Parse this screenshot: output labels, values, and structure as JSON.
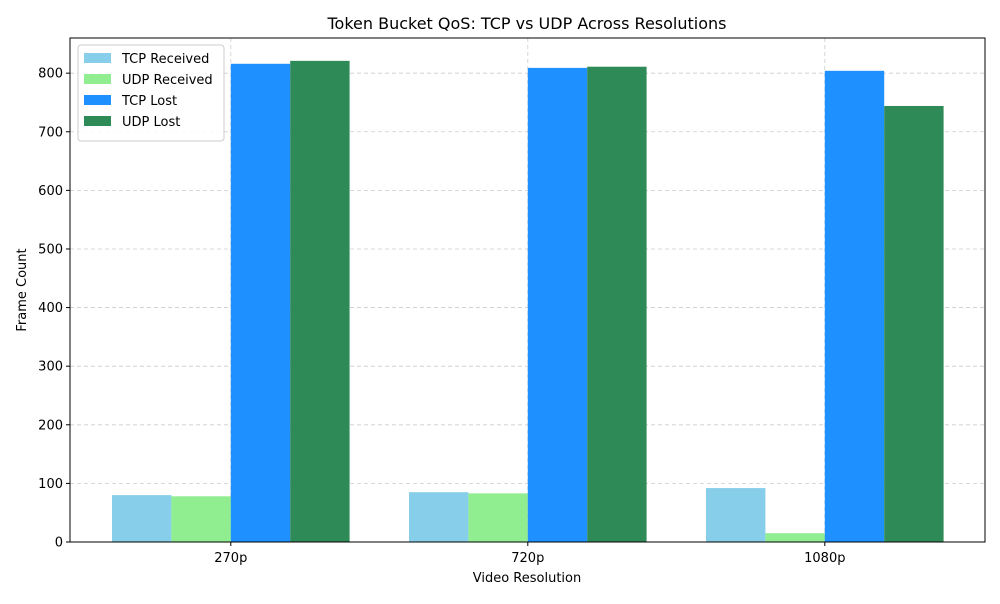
{
  "chart_data": {
    "type": "bar",
    "title": "Token Bucket QoS: TCP vs UDP Across Resolutions",
    "xlabel": "Video Resolution",
    "ylabel": "Frame Count",
    "categories": [
      "270p",
      "720p",
      "1080p"
    ],
    "ylim": [
      0,
      860
    ],
    "yticks": [
      0,
      100,
      200,
      300,
      400,
      500,
      600,
      700,
      800
    ],
    "grid": true,
    "legend_position": "top-left",
    "series": [
      {
        "name": "TCP Received",
        "color": "#87CEEB",
        "values": [
          80,
          85,
          92
        ]
      },
      {
        "name": "UDP Received",
        "color": "#90EE90",
        "values": [
          78,
          83,
          15
        ]
      },
      {
        "name": "TCP Lost",
        "color": "#1E90FF",
        "values": [
          816,
          809,
          804
        ]
      },
      {
        "name": "UDP Lost",
        "color": "#2E8B57",
        "values": [
          821,
          811,
          744
        ]
      }
    ]
  }
}
